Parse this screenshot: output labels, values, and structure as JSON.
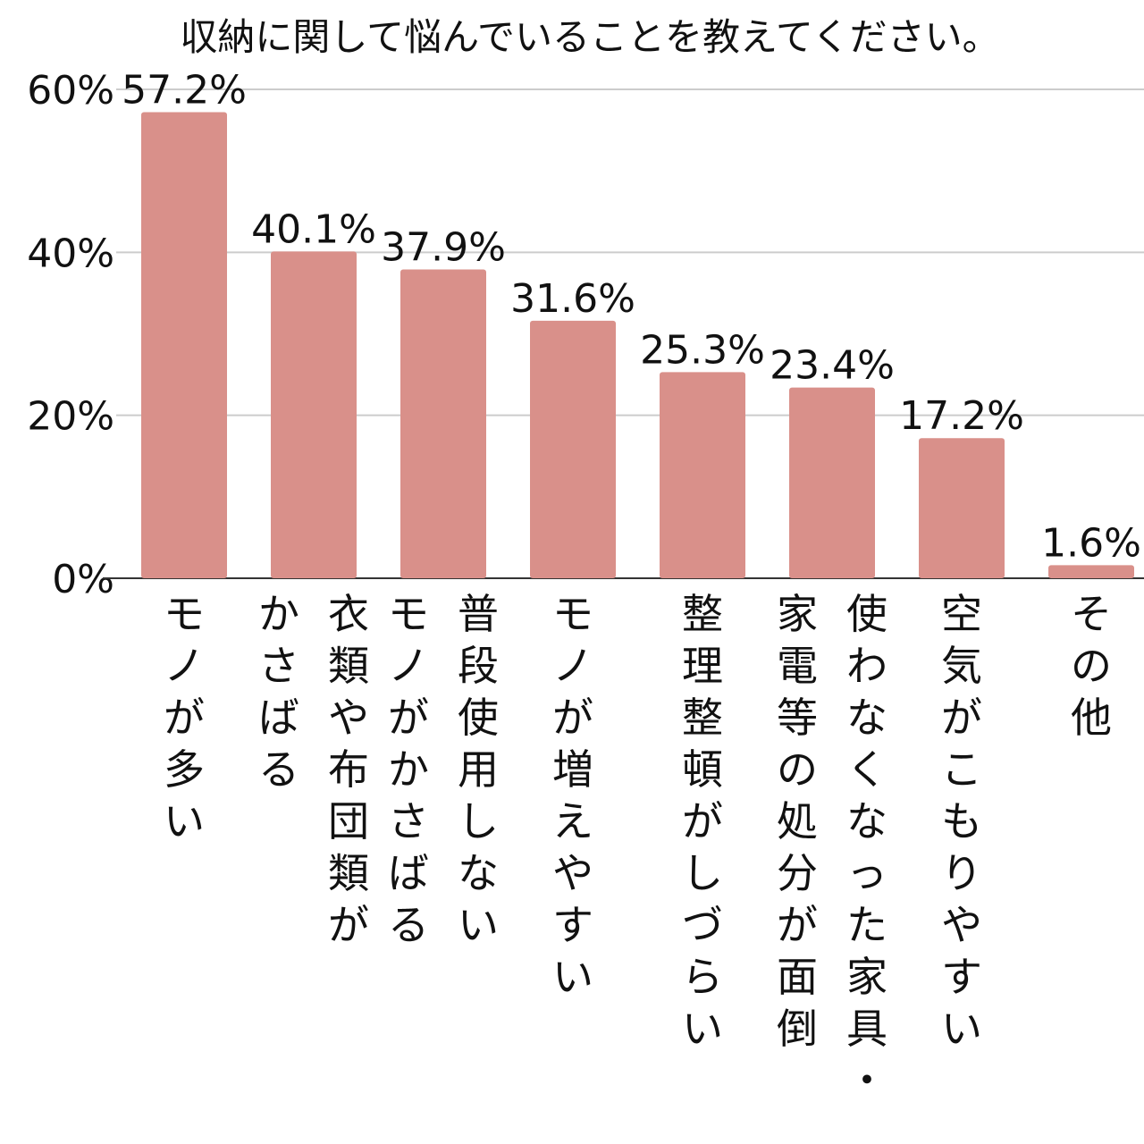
{
  "chart_data": {
    "type": "bar",
    "title": "収納に関して悩んでいることを教えてください。",
    "categories": [
      [
        "モノが多い"
      ],
      [
        "衣類や布団類が",
        "かさばる"
      ],
      [
        "普段使用しない",
        "モノがかさばる"
      ],
      [
        "モノが増えやすい"
      ],
      [
        "整理整頓がしづらい"
      ],
      [
        "使わなくなった家具・",
        "家電等の処分が面倒"
      ],
      [
        "空気がこもりやすい"
      ],
      [
        "その他"
      ]
    ],
    "values": [
      57.2,
      40.1,
      37.9,
      31.6,
      25.3,
      23.4,
      17.2,
      1.6
    ],
    "value_labels": [
      "57.2%",
      "40.1%",
      "37.9%",
      "31.6%",
      "25.3%",
      "23.4%",
      "17.2%",
      "1.6%"
    ],
    "yticks": [
      "0%",
      "20%",
      "40%",
      "60%"
    ],
    "ytick_values": [
      0,
      20,
      40,
      60
    ],
    "ylim": [
      0,
      60
    ],
    "bar_color": "#d9908a",
    "grid": true
  }
}
